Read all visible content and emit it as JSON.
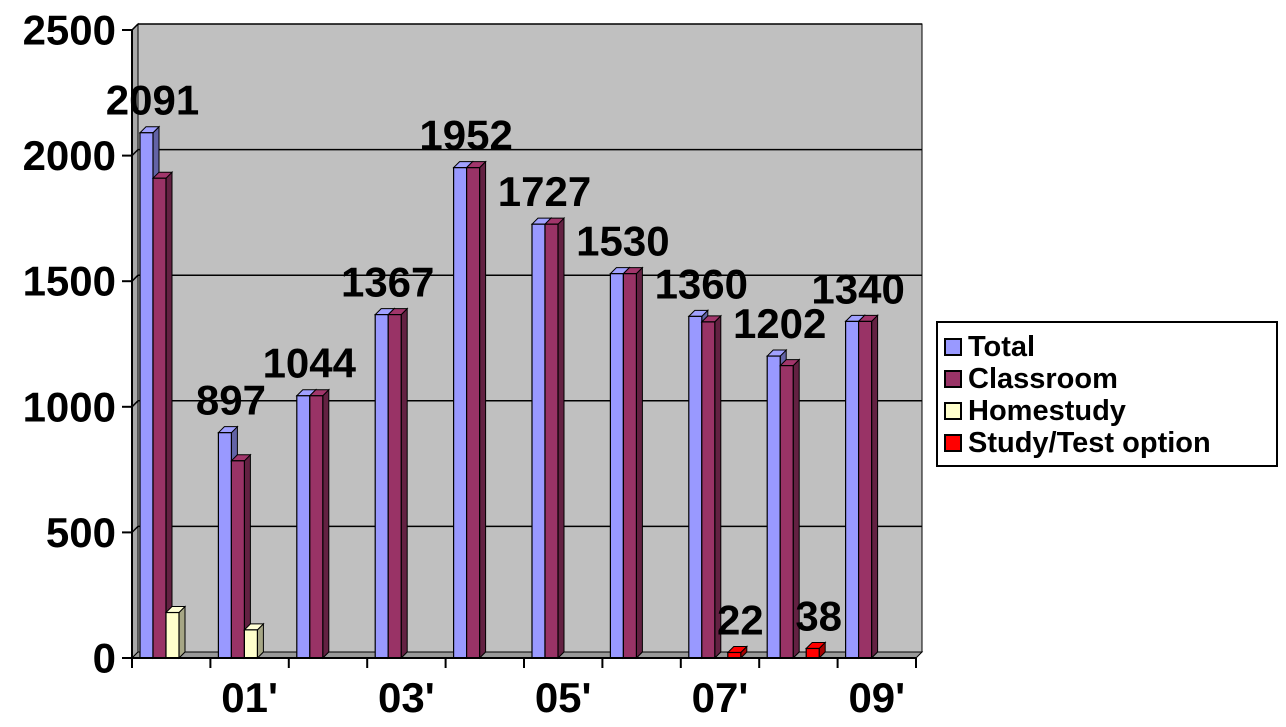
{
  "chart_data": {
    "type": "bar",
    "title": "",
    "xlabel": "",
    "ylabel": "",
    "ylim": [
      0,
      2500
    ],
    "y_ticks": [
      "0",
      "500",
      "1000",
      "1500",
      "2000",
      "2500"
    ],
    "grid": true,
    "legend_placement": "right",
    "categories": [
      "",
      "01'",
      "",
      "03'",
      "",
      "05'",
      "",
      "07'",
      "",
      "09'"
    ],
    "series": [
      {
        "name": "Total",
        "color": "#9999FF",
        "values": [
          2091,
          897,
          1044,
          1367,
          1952,
          1727,
          1530,
          1360,
          1202,
          1340
        ]
      },
      {
        "name": "Classroom",
        "color": "#993366",
        "values": [
          1910,
          785,
          1044,
          1367,
          1952,
          1727,
          1530,
          1338,
          1164,
          1340
        ]
      },
      {
        "name": "Homestudy",
        "color": "#FFFFCC",
        "values": [
          181,
          112,
          null,
          null,
          null,
          null,
          null,
          null,
          null,
          null
        ]
      },
      {
        "name": "Study/Test option",
        "color": "#FF0000",
        "values": [
          null,
          null,
          null,
          null,
          null,
          null,
          null,
          22,
          38,
          null
        ]
      }
    ],
    "data_labels": [
      {
        "category": 0,
        "series": "Total",
        "text": "2091"
      },
      {
        "category": 1,
        "series": "Total",
        "text": "897"
      },
      {
        "category": 2,
        "series": "Total",
        "text": "1044"
      },
      {
        "category": 3,
        "series": "Total",
        "text": "1367"
      },
      {
        "category": 4,
        "series": "Total",
        "text": "1952"
      },
      {
        "category": 5,
        "series": "Total",
        "text": "1727"
      },
      {
        "category": 6,
        "series": "Total",
        "text": "1530"
      },
      {
        "category": 7,
        "series": "Total",
        "text": "1360"
      },
      {
        "category": 8,
        "series": "Total",
        "text": "1202"
      },
      {
        "category": 9,
        "series": "Total",
        "text": "1340"
      },
      {
        "category": 7,
        "series": "Study/Test option",
        "text": "22"
      },
      {
        "category": 8,
        "series": "Study/Test option",
        "text": "38"
      }
    ],
    "colors": {
      "plot_background": "#C0C0C0",
      "gridline": "#000000",
      "axis": "#000000"
    }
  },
  "legend": {
    "items": [
      {
        "label": "Total",
        "color": "#9999FF"
      },
      {
        "label": "Classroom",
        "color": "#993366"
      },
      {
        "label": "Homestudy",
        "color": "#FFFFCC"
      },
      {
        "label": "Study/Test option",
        "color": "#FF0000"
      }
    ]
  }
}
